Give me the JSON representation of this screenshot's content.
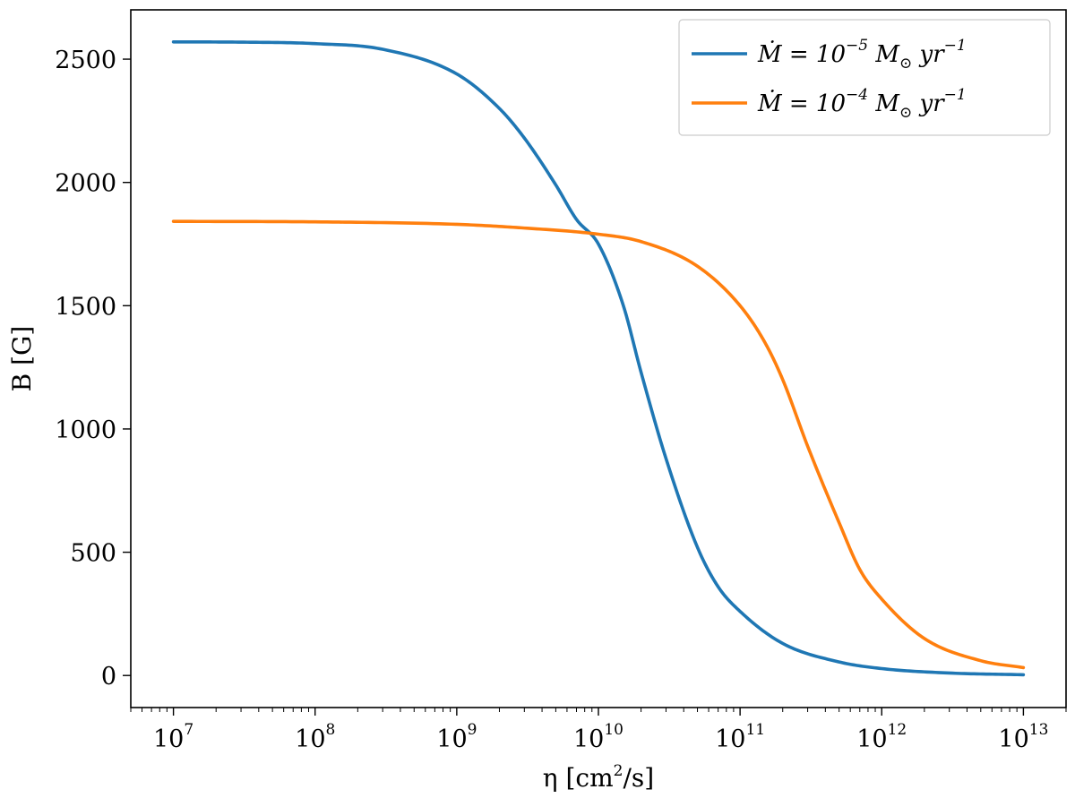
{
  "chart_data": {
    "type": "line",
    "title": "",
    "xlabel": {
      "main": "η [cm",
      "sup": "2",
      "rest": "/s]"
    },
    "ylabel": "B [G]",
    "xscale": "log",
    "xlim": [
      5000000.0,
      20000000000000.0
    ],
    "ylim": [
      -130,
      2700
    ],
    "xticks": [
      {
        "value": 10000000.0,
        "base": "10",
        "exp": "7"
      },
      {
        "value": 100000000.0,
        "base": "10",
        "exp": "8"
      },
      {
        "value": 1000000000.0,
        "base": "10",
        "exp": "9"
      },
      {
        "value": 10000000000.0,
        "base": "10",
        "exp": "10"
      },
      {
        "value": 100000000000.0,
        "base": "10",
        "exp": "11"
      },
      {
        "value": 1000000000000.0,
        "base": "10",
        "exp": "12"
      },
      {
        "value": 10000000000000.0,
        "base": "10",
        "exp": "13"
      }
    ],
    "yticks": [
      0,
      500,
      1000,
      1500,
      2000,
      2500
    ],
    "ytick_labels": [
      "0",
      "500",
      "1000",
      "1500",
      "2000",
      "2500"
    ],
    "grid": false,
    "legend_position": "top-right",
    "series": [
      {
        "name": "Ṁ = 10⁻⁵ M⊙ yr⁻¹",
        "legend": {
          "pre": "Ṁ = 10",
          "exp1": "−5",
          "mid": " M",
          "sub": "⊙",
          "post": " yr",
          "exp2": "−1"
        },
        "color": "#1f77b4",
        "x": [
          10000000.0,
          30000000.0,
          100000000.0,
          300000000.0,
          1000000000.0,
          2000000000.0,
          3000000000.0,
          5000000000.0,
          7000000000.0,
          10000000000.0,
          15000000000.0,
          20000000000.0,
          30000000000.0,
          50000000000.0,
          70000000000.0,
          100000000000.0,
          200000000000.0,
          500000000000.0,
          1000000000000.0,
          3000000000000.0,
          10000000000000.0
        ],
        "y": [
          2570,
          2569,
          2563,
          2540,
          2440,
          2300,
          2180,
          1990,
          1850,
          1750,
          1500,
          1230,
          880,
          520,
          360,
          260,
          130,
          55,
          28,
          10,
          3
        ]
      },
      {
        "name": "Ṁ = 10⁻⁴ M⊙ yr⁻¹",
        "legend": {
          "pre": "Ṁ = 10",
          "exp1": "−4",
          "mid": " M",
          "sub": "⊙",
          "post": " yr",
          "exp2": "−1"
        },
        "color": "#ff7f0e",
        "x": [
          10000000.0,
          100000000.0,
          1000000000.0,
          3000000000.0,
          10000000000.0,
          20000000000.0,
          50000000000.0,
          100000000000.0,
          150000000000.0,
          200000000000.0,
          300000000000.0,
          500000000000.0,
          700000000000.0,
          1000000000000.0,
          2000000000000.0,
          5000000000000.0,
          10000000000000.0
        ],
        "y": [
          1842,
          1840,
          1830,
          1815,
          1790,
          1760,
          1660,
          1500,
          1350,
          1200,
          930,
          620,
          430,
          310,
          150,
          60,
          32
        ]
      }
    ]
  }
}
